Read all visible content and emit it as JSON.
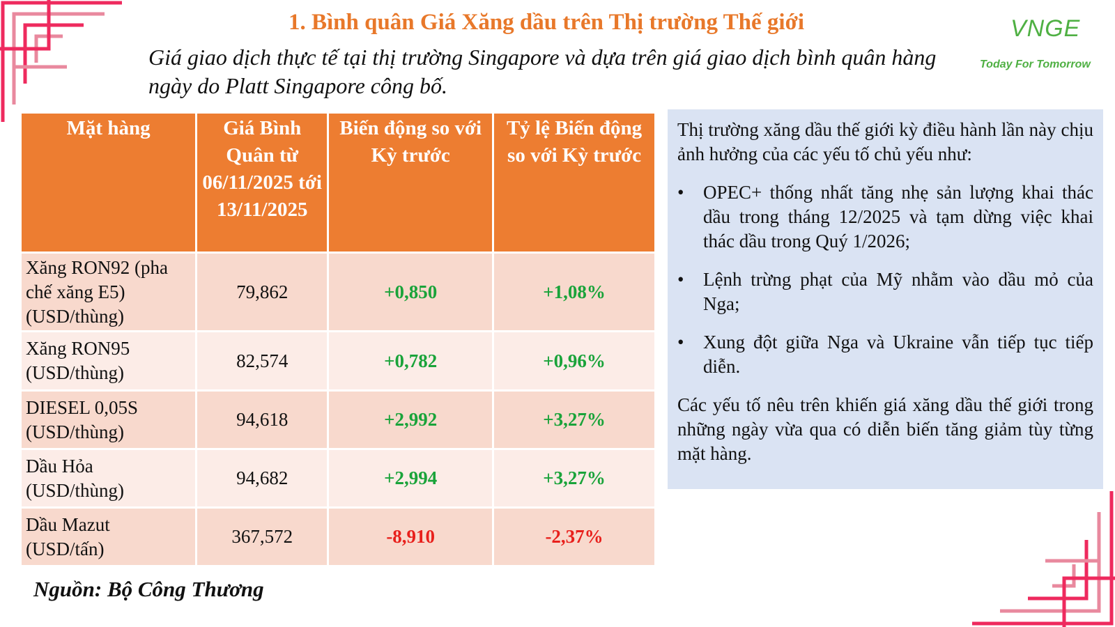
{
  "header": {
    "title": "1. Bình quân Giá Xăng dầu trên Thị trường Thế giới",
    "subtitle": "Giá giao dịch thực tế tại thị trường Singapore và dựa trên giá giao dịch bình quân hàng ngày do Platt Singapore công bố."
  },
  "logo": {
    "mark": "VNGE",
    "tagline": "Today For Tomorrow"
  },
  "colors": {
    "title": "#e8782a",
    "header_bg": "#ed7d31",
    "row_odd": "#f8d9cd",
    "row_even": "#fcece7",
    "increase": "#1aa33a",
    "decrease": "#e8201c",
    "panel_bg": "#dae3f3",
    "logo": "#4fb043",
    "frame_red": "#ee2a5e",
    "frame_pink": "#e9899e"
  },
  "table": {
    "headers": [
      "Mặt hàng",
      "Giá Bình Quân từ 06/11/2025 tới 13/11/2025",
      "Biến động so với Kỳ trước",
      "Tỷ lệ Biến động so với Kỳ trước"
    ],
    "rows": [
      {
        "item": "Xăng RON92 (pha chế xăng E5) (USD/thùng)",
        "price": "79,862",
        "change": "+0,850",
        "pct": "+1,08%"
      },
      {
        "item": "Xăng RON95 (USD/thùng)",
        "price": "82,574",
        "change": "+0,782",
        "pct": "+0,96%"
      },
      {
        "item": "DIESEL 0,05S (USD/thùng)",
        "price": "94,618",
        "change": "+2,992",
        "pct": "+3,27%"
      },
      {
        "item": "Dầu Hỏa (USD/thùng)",
        "price": "94,682",
        "change": "+2,994",
        "pct": "+3,27%"
      },
      {
        "item": "Dầu Mazut (USD/tấn)",
        "price": "367,572",
        "change": "-8,910",
        "pct": "-2,37%"
      }
    ]
  },
  "source": "Nguồn: Bộ Công Thương",
  "panel": {
    "intro": "Thị trường xăng dầu thế giới kỳ điều hành lần này chịu ảnh hưởng của các yếu tố chủ yếu như:",
    "bullet_symbol": "•",
    "bullets": [
      "OPEC+ thống nhất tăng nhẹ sản lượng khai thác dầu trong tháng 12/2025 và tạm dừng việc khai thác dầu trong Quý 1/2026;",
      "Lệnh trừng phạt của Mỹ nhằm vào dầu mỏ của Nga;",
      "Xung đột giữa Nga và Ukraine vẫn tiếp tục tiếp diễn."
    ],
    "conclusion": "Các yếu tố nêu trên khiến giá xăng dầu thế giới trong những ngày vừa qua có diễn biến tăng giảm tùy từng mặt hàng."
  }
}
